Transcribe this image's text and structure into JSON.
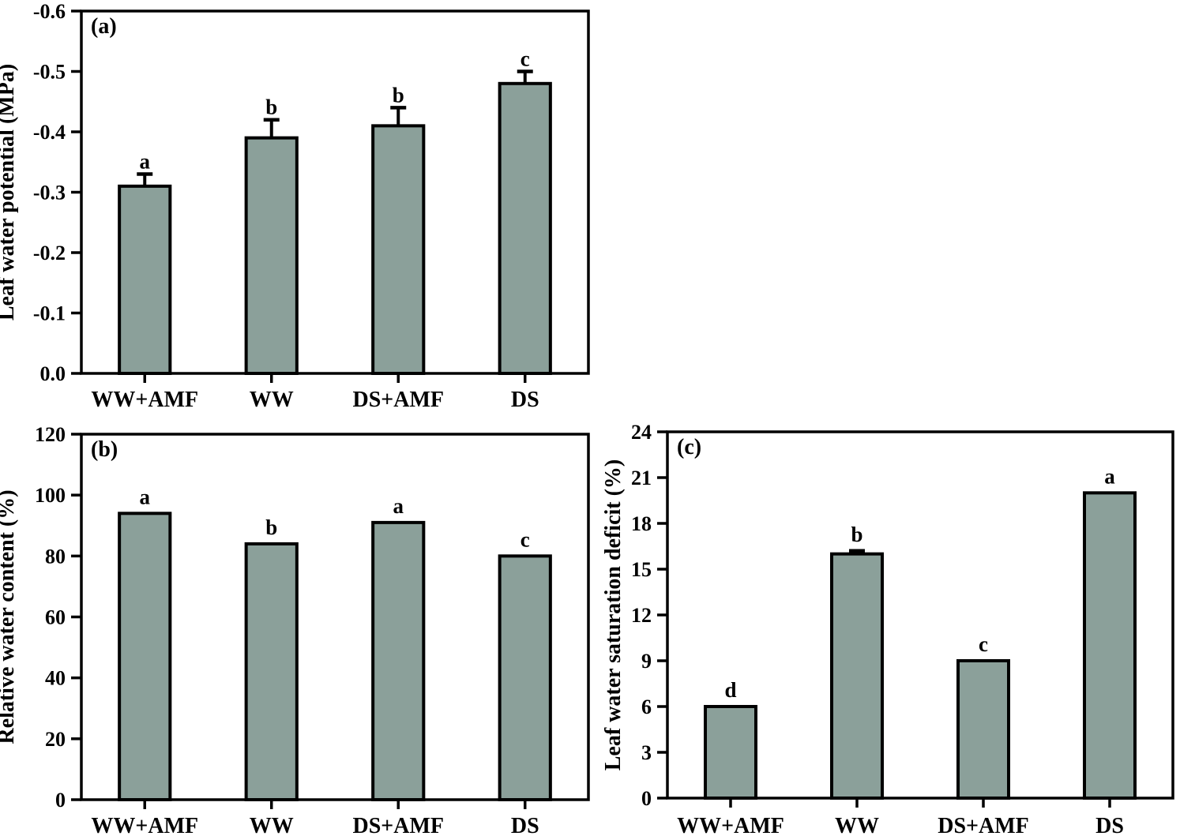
{
  "style": {
    "bar_fill": "#8BA09A",
    "line_color": "#000000",
    "background": "#ffffff"
  },
  "figure": {
    "description": "Three-panel bar figure comparing treatments WW+AMF, WW, DS+AMF, DS",
    "panels": [
      "(a)",
      "(b)",
      "(c)"
    ]
  },
  "chart_data": [
    {
      "id": "a",
      "type": "bar",
      "panel_label": "(a)",
      "title": "",
      "ylabel": "Leaf water potential (MPa)",
      "xlabel": "",
      "categories": [
        "WW+AMF",
        "WW",
        "DS+AMF",
        "DS"
      ],
      "values": [
        -0.31,
        -0.39,
        -0.41,
        -0.48
      ],
      "errors": [
        0.02,
        0.03,
        0.03,
        0.02
      ],
      "sig_letters": [
        "a",
        "b",
        "b",
        "c"
      ],
      "ylim": [
        0,
        -0.6
      ],
      "yticks": [
        0,
        -0.1,
        -0.2,
        -0.3,
        -0.4,
        -0.5,
        -0.6
      ],
      "ytick_labels": [
        "0.0",
        "-0.1",
        "-0.2",
        "-0.3",
        "-0.4",
        "-0.5",
        "-0.6"
      ],
      "axis_note": "y axis inverted: 0.0 at bottom, -0.6 at top",
      "grid": false,
      "legend": null
    },
    {
      "id": "b",
      "type": "bar",
      "panel_label": "(b)",
      "title": "",
      "ylabel": "Relative water content (%)",
      "xlabel": "",
      "categories": [
        "WW+AMF",
        "WW",
        "DS+AMF",
        "DS"
      ],
      "values": [
        94,
        84,
        91,
        80
      ],
      "errors": [
        0,
        0,
        0,
        0
      ],
      "sig_letters": [
        "a",
        "b",
        "a",
        "c"
      ],
      "ylim": [
        0,
        120
      ],
      "yticks": [
        0,
        20,
        40,
        60,
        80,
        100,
        120
      ],
      "ytick_labels": [
        "0",
        "20",
        "40",
        "60",
        "80",
        "100",
        "120"
      ],
      "grid": false,
      "legend": null
    },
    {
      "id": "c",
      "type": "bar",
      "panel_label": "(c)",
      "title": "",
      "ylabel": "Leaf water saturation deficit (%)",
      "xlabel": "",
      "categories": [
        "WW+AMF",
        "WW",
        "DS+AMF",
        "DS"
      ],
      "values": [
        6,
        16,
        9,
        20
      ],
      "errors": [
        0,
        0.2,
        0,
        0
      ],
      "sig_letters": [
        "d",
        "b",
        "c",
        "a"
      ],
      "ylim": [
        0,
        24
      ],
      "yticks": [
        0,
        3,
        6,
        9,
        12,
        15,
        18,
        21,
        24
      ],
      "ytick_labels": [
        "0",
        "3",
        "6",
        "9",
        "12",
        "15",
        "18",
        "21",
        "24"
      ],
      "grid": false,
      "legend": null
    }
  ]
}
